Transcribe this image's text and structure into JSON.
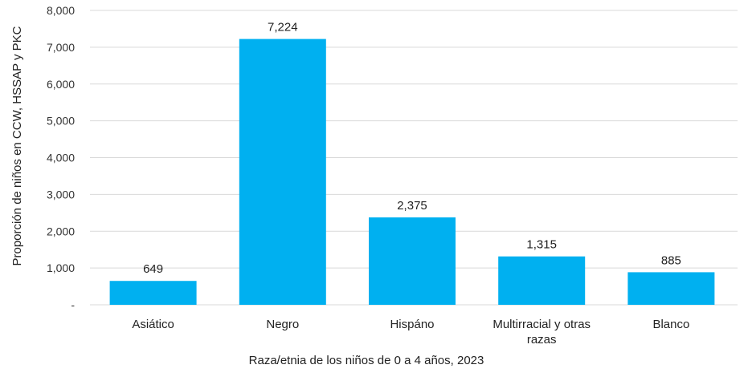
{
  "chart_data": {
    "type": "bar",
    "categories": [
      "Asiático",
      "Negro",
      "Hispáno",
      "Multirracial y otras razas",
      "Blanco"
    ],
    "category_lines": [
      [
        "Asiático"
      ],
      [
        "Negro"
      ],
      [
        "Hispáno"
      ],
      [
        "Multirracial y otras",
        "razas"
      ],
      [
        "Blanco"
      ]
    ],
    "values": [
      649,
      7224,
      2375,
      1315,
      885
    ],
    "data_labels": [
      "649",
      "7,224",
      "2,375",
      "1,315",
      "885"
    ],
    "ylim": [
      0,
      8000
    ],
    "yticks": [
      0,
      1000,
      2000,
      3000,
      4000,
      5000,
      6000,
      7000,
      8000
    ],
    "ytick_labels": [
      "-",
      "1,000",
      "2,000",
      "3,000",
      "4,000",
      "5,000",
      "6,000",
      "7,000",
      "8,000"
    ],
    "xlabel": "Raza/etnia de los niños de 0 a 4 años, 2023",
    "ylabel": "Proporción de niños en CCW, HSSAP y PKC",
    "title": "",
    "grid": true,
    "bar_color": "#00b0f0",
    "grid_color": "#d9d9d9"
  }
}
